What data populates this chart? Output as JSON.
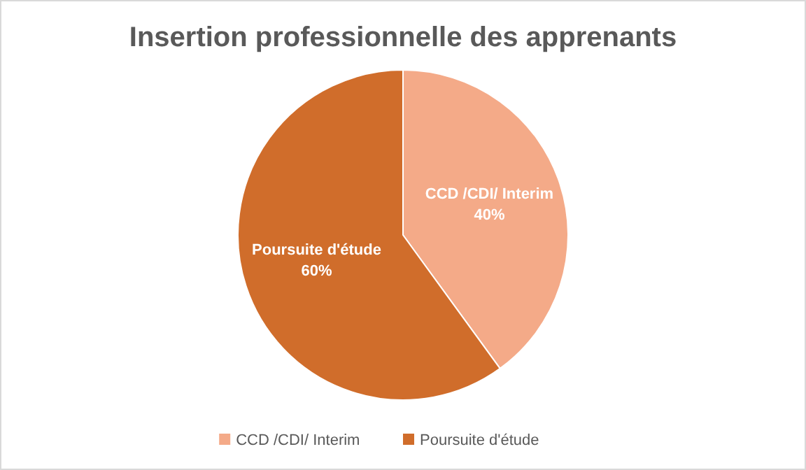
{
  "chart_data": {
    "type": "pie",
    "title": "Insertion professionnelle des apprenants",
    "categories": [
      "CCD /CDI/ Interim",
      "Poursuite d'étude"
    ],
    "values": [
      40,
      60
    ],
    "colors": [
      "#f4aa88",
      "#d06d2b"
    ],
    "value_labels": [
      "40%",
      "60%"
    ],
    "legend": "bottom"
  }
}
